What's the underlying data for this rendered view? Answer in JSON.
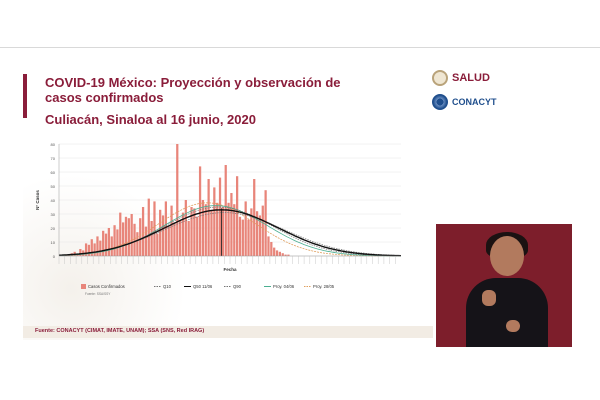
{
  "slide": {
    "title": "COVID-19 México: Proyección y observación de casos confirmados",
    "subtitle": "Culiacán, Sinaloa al 16 junio, 2020",
    "logos": {
      "salud": "SALUD",
      "conacyt": "CONACYT"
    },
    "footer": "Fuente: CONACYT (CIMAT, IMATE, UNAM); SSA (SNS, Red IRAG)"
  },
  "chart_data": {
    "type": "bar",
    "xlabel": "Fecha",
    "ylabel": "N° Casos",
    "ylim": [
      0,
      80
    ],
    "yticks": [
      0,
      10,
      20,
      30,
      40,
      50,
      60,
      70,
      80
    ],
    "source_note": "Fuente: SSA/SSY",
    "series": [
      {
        "name": "Casos Confirmados",
        "kind": "bar",
        "color": "#e8857a",
        "values": [
          0,
          0,
          1,
          1,
          2,
          3,
          1,
          5,
          4,
          9,
          8,
          12,
          9,
          14,
          11,
          18,
          16,
          20,
          14,
          22,
          19,
          31,
          24,
          28,
          27,
          30,
          23,
          17,
          27,
          35,
          21,
          41,
          25,
          39,
          16,
          33,
          29,
          39,
          21,
          36,
          24,
          80,
          25,
          31,
          40,
          25,
          35,
          34,
          28,
          64,
          40,
          37,
          55,
          33,
          49,
          38,
          56,
          35,
          65,
          38,
          45,
          37,
          57,
          28,
          26,
          39,
          26,
          34,
          55,
          32,
          29,
          36,
          47,
          14,
          10,
          6,
          4,
          3,
          2,
          1,
          1,
          0,
          0,
          0,
          0,
          0,
          0,
          0,
          0,
          0,
          0,
          0,
          0,
          0,
          0,
          0,
          0,
          0,
          0,
          0,
          0,
          0,
          0,
          0,
          0,
          0,
          0,
          0,
          0,
          0,
          0,
          0,
          0,
          0,
          0,
          0,
          0,
          0,
          0,
          0
        ]
      },
      {
        "name": "Q10",
        "kind": "line",
        "color": "#777777"
      },
      {
        "name": "Q50 11/06",
        "kind": "line",
        "color": "#111111"
      },
      {
        "name": "Q90",
        "kind": "line",
        "color": "#777777"
      },
      {
        "name": "Proy. 04/06",
        "kind": "line",
        "color": "#4caf91"
      },
      {
        "name": "Proy. 28/05",
        "kind": "line",
        "color": "#e0a060"
      }
    ]
  }
}
